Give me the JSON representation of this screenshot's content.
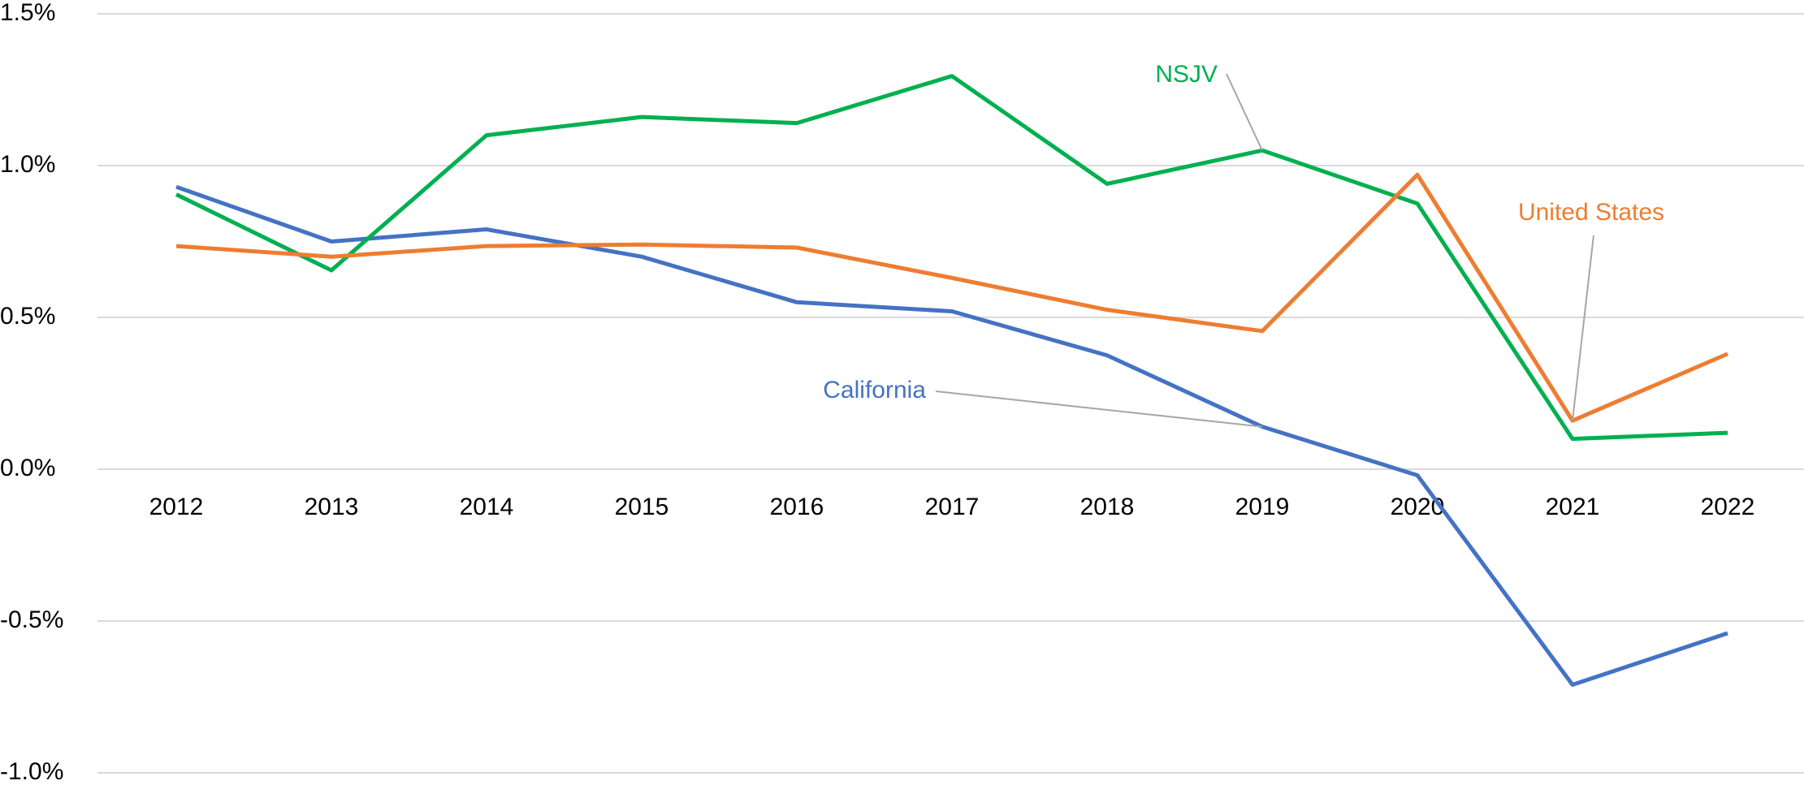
{
  "chart_data": {
    "type": "line",
    "categories": [
      "2012",
      "2013",
      "2014",
      "2015",
      "2016",
      "2017",
      "2018",
      "2019",
      "2020",
      "2021",
      "2022"
    ],
    "series": [
      {
        "name": "California",
        "color": "#4472c4",
        "values": [
          0.93,
          0.75,
          0.79,
          0.7,
          0.55,
          0.52,
          0.375,
          0.14,
          -0.02,
          -0.71,
          -0.54
        ]
      },
      {
        "name": "NSJV",
        "color": "#00b050",
        "values": [
          0.905,
          0.655,
          1.1,
          1.16,
          1.14,
          1.295,
          0.94,
          1.05,
          0.875,
          0.1,
          0.12
        ]
      },
      {
        "name": "United States",
        "color": "#ed7d31",
        "values": [
          0.735,
          0.7,
          0.735,
          0.74,
          0.73,
          0.63,
          0.525,
          0.455,
          0.97,
          0.16,
          0.38
        ]
      }
    ],
    "ylim": [
      -1.0,
      1.5
    ],
    "yticks": [
      {
        "value": -1.0,
        "label": "-1.0%"
      },
      {
        "value": -0.5,
        "label": "-0.5%"
      },
      {
        "value": 0,
        "label": "0.0%"
      },
      {
        "value": 0.5,
        "label": "0.5%"
      },
      {
        "value": 1.0,
        "label": "1.0%"
      },
      {
        "value": 1.5,
        "label": "1.5%"
      }
    ],
    "grid": true
  }
}
